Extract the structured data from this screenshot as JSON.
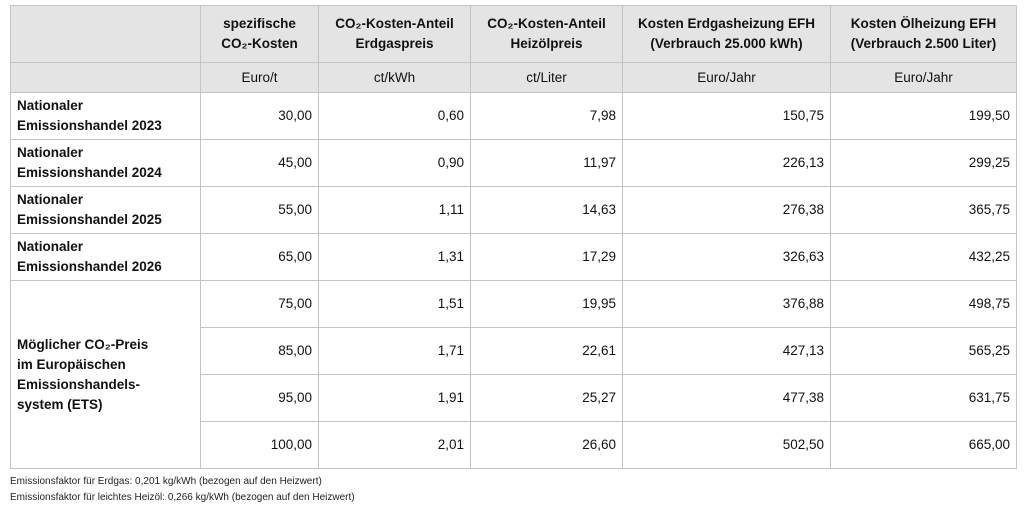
{
  "table": {
    "header": [
      [
        "spezifische",
        "CO₂-Kosten"
      ],
      [
        "CO₂-Kosten-Anteil",
        "Erdgaspreis"
      ],
      [
        "CO₂-Kosten-Anteil",
        "Heizölpreis"
      ],
      [
        "Kosten Erdgasheizung EFH",
        "(Verbrauch 25.000 kWh)"
      ],
      [
        "Kosten Ölheizung EFH",
        "(Verbrauch 2.500 Liter)"
      ]
    ],
    "units": [
      "Euro/t",
      "ct/kWh",
      "ct/Liter",
      "Euro/Jahr",
      "Euro/Jahr"
    ],
    "groups": [
      {
        "label": [
          "Nationaler",
          "Emissionshandel 2023"
        ],
        "rows": [
          [
            "30,00",
            "0,60",
            "7,98",
            "150,75",
            "199,50"
          ]
        ]
      },
      {
        "label": [
          "Nationaler",
          "Emissionshandel 2024"
        ],
        "rows": [
          [
            "45,00",
            "0,90",
            "11,97",
            "226,13",
            "299,25"
          ]
        ]
      },
      {
        "label": [
          "Nationaler",
          "Emissionshandel 2025"
        ],
        "rows": [
          [
            "55,00",
            "1,11",
            "14,63",
            "276,38",
            "365,75"
          ]
        ]
      },
      {
        "label": [
          "Nationaler",
          "Emissionshandel 2026"
        ],
        "rows": [
          [
            "65,00",
            "1,31",
            "17,29",
            "326,63",
            "432,25"
          ]
        ]
      },
      {
        "label": [
          "Möglicher CO₂-Preis",
          "im Europäischen",
          "Emissionshandels-",
          "system (ETS)"
        ],
        "rows": [
          [
            "75,00",
            "1,51",
            "19,95",
            "376,88",
            "498,75"
          ],
          [
            "85,00",
            "1,71",
            "22,61",
            "427,13",
            "565,25"
          ],
          [
            "95,00",
            "1,91",
            "25,27",
            "477,38",
            "631,75"
          ],
          [
            "100,00",
            "2,01",
            "26,60",
            "502,50",
            "665,00"
          ]
        ]
      }
    ]
  },
  "footnotes": [
    "Emissionsfaktor für Erdgas: 0,201 kg/kWh (bezogen auf den Heizwert)",
    "Emissionsfaktor für leichtes Heizöl: 0,266 kg/kWh (bezogen auf den Heizwert)"
  ]
}
